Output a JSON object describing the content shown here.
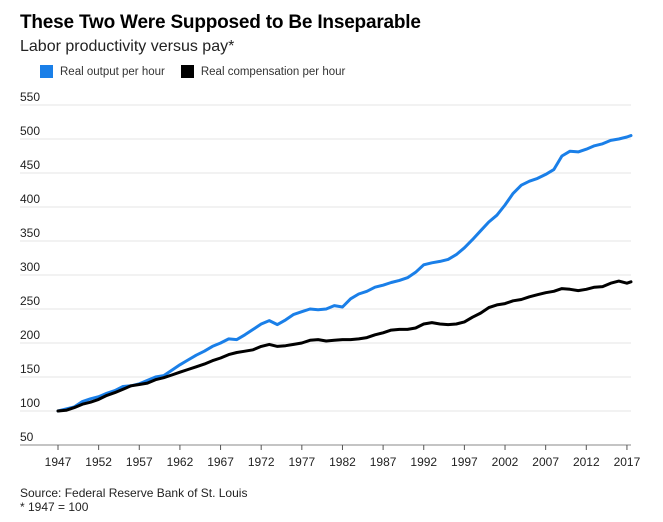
{
  "chart_data": {
    "type": "line",
    "title": "These Two Were Supposed to Be Inseparable",
    "subtitle": "Labor productivity versus pay*",
    "legend": [
      {
        "name": "Real output per hour",
        "color": "#1a7fe8"
      },
      {
        "name": "Real compensation per hour",
        "color": "#000000"
      }
    ],
    "x_ticks": [
      1947,
      1952,
      1957,
      1962,
      1967,
      1972,
      1977,
      1982,
      1987,
      1992,
      1997,
      2002,
      2007,
      2012,
      2017
    ],
    "y_ticks": [
      50,
      100,
      150,
      200,
      250,
      300,
      350,
      400,
      450,
      500,
      550
    ],
    "xlim": [
      1947,
      2017.5
    ],
    "ylim": [
      50,
      550
    ],
    "series": [
      {
        "name": "Real output per hour",
        "color": "#1a7fe8",
        "x": [
          1947,
          1948,
          1949,
          1950,
          1951,
          1952,
          1953,
          1954,
          1955,
          1956,
          1957,
          1958,
          1959,
          1960,
          1961,
          1962,
          1963,
          1964,
          1965,
          1966,
          1967,
          1968,
          1969,
          1970,
          1971,
          1972,
          1973,
          1974,
          1975,
          1976,
          1977,
          1978,
          1979,
          1980,
          1981,
          1982,
          1983,
          1984,
          1985,
          1986,
          1987,
          1988,
          1989,
          1990,
          1991,
          1992,
          1993,
          1994,
          1995,
          1996,
          1997,
          1998,
          1999,
          2000,
          2001,
          2002,
          2003,
          2004,
          2005,
          2006,
          2007,
          2008,
          2009,
          2010,
          2011,
          2012,
          2013,
          2014,
          2015,
          2016,
          2017,
          2017.5
        ],
        "values": [
          100,
          103,
          106,
          114,
          118,
          121,
          126,
          130,
          136,
          137,
          140,
          145,
          150,
          152,
          160,
          168,
          175,
          182,
          188,
          195,
          200,
          206,
          205,
          212,
          220,
          228,
          233,
          227,
          234,
          242,
          246,
          250,
          249,
          250,
          255,
          253,
          265,
          272,
          276,
          282,
          285,
          289,
          292,
          296,
          304,
          315,
          318,
          320,
          323,
          330,
          340,
          352,
          365,
          378,
          388,
          403,
          420,
          432,
          438,
          442,
          448,
          455,
          475,
          482,
          481,
          485,
          490,
          493,
          498,
          500,
          503,
          505
        ]
      },
      {
        "name": "Real compensation per hour",
        "color": "#000000",
        "x": [
          1947,
          1948,
          1949,
          1950,
          1951,
          1952,
          1953,
          1954,
          1955,
          1956,
          1957,
          1958,
          1959,
          1960,
          1961,
          1962,
          1963,
          1964,
          1965,
          1966,
          1967,
          1968,
          1969,
          1970,
          1971,
          1972,
          1973,
          1974,
          1975,
          1976,
          1977,
          1978,
          1979,
          1980,
          1981,
          1982,
          1983,
          1984,
          1985,
          1986,
          1987,
          1988,
          1989,
          1990,
          1991,
          1992,
          1993,
          1994,
          1995,
          1996,
          1997,
          1998,
          1999,
          2000,
          2001,
          2002,
          2003,
          2004,
          2005,
          2006,
          2007,
          2008,
          2009,
          2010,
          2011,
          2012,
          2013,
          2014,
          2015,
          2016,
          2017,
          2017.5
        ],
        "values": [
          100,
          101,
          105,
          110,
          113,
          117,
          123,
          127,
          132,
          137,
          139,
          141,
          146,
          149,
          153,
          157,
          161,
          165,
          169,
          174,
          178,
          183,
          186,
          188,
          190,
          195,
          198,
          195,
          196,
          198,
          200,
          204,
          205,
          203,
          204,
          205,
          205,
          206,
          208,
          212,
          215,
          219,
          220,
          220,
          222,
          228,
          230,
          228,
          227,
          228,
          231,
          238,
          244,
          252,
          256,
          258,
          262,
          264,
          268,
          271,
          274,
          276,
          280,
          279,
          277,
          279,
          282,
          283,
          288,
          291,
          288,
          290
        ]
      }
    ],
    "source": "Source: Federal Reserve Bank of St. Louis",
    "footnote": "* 1947 = 100"
  }
}
